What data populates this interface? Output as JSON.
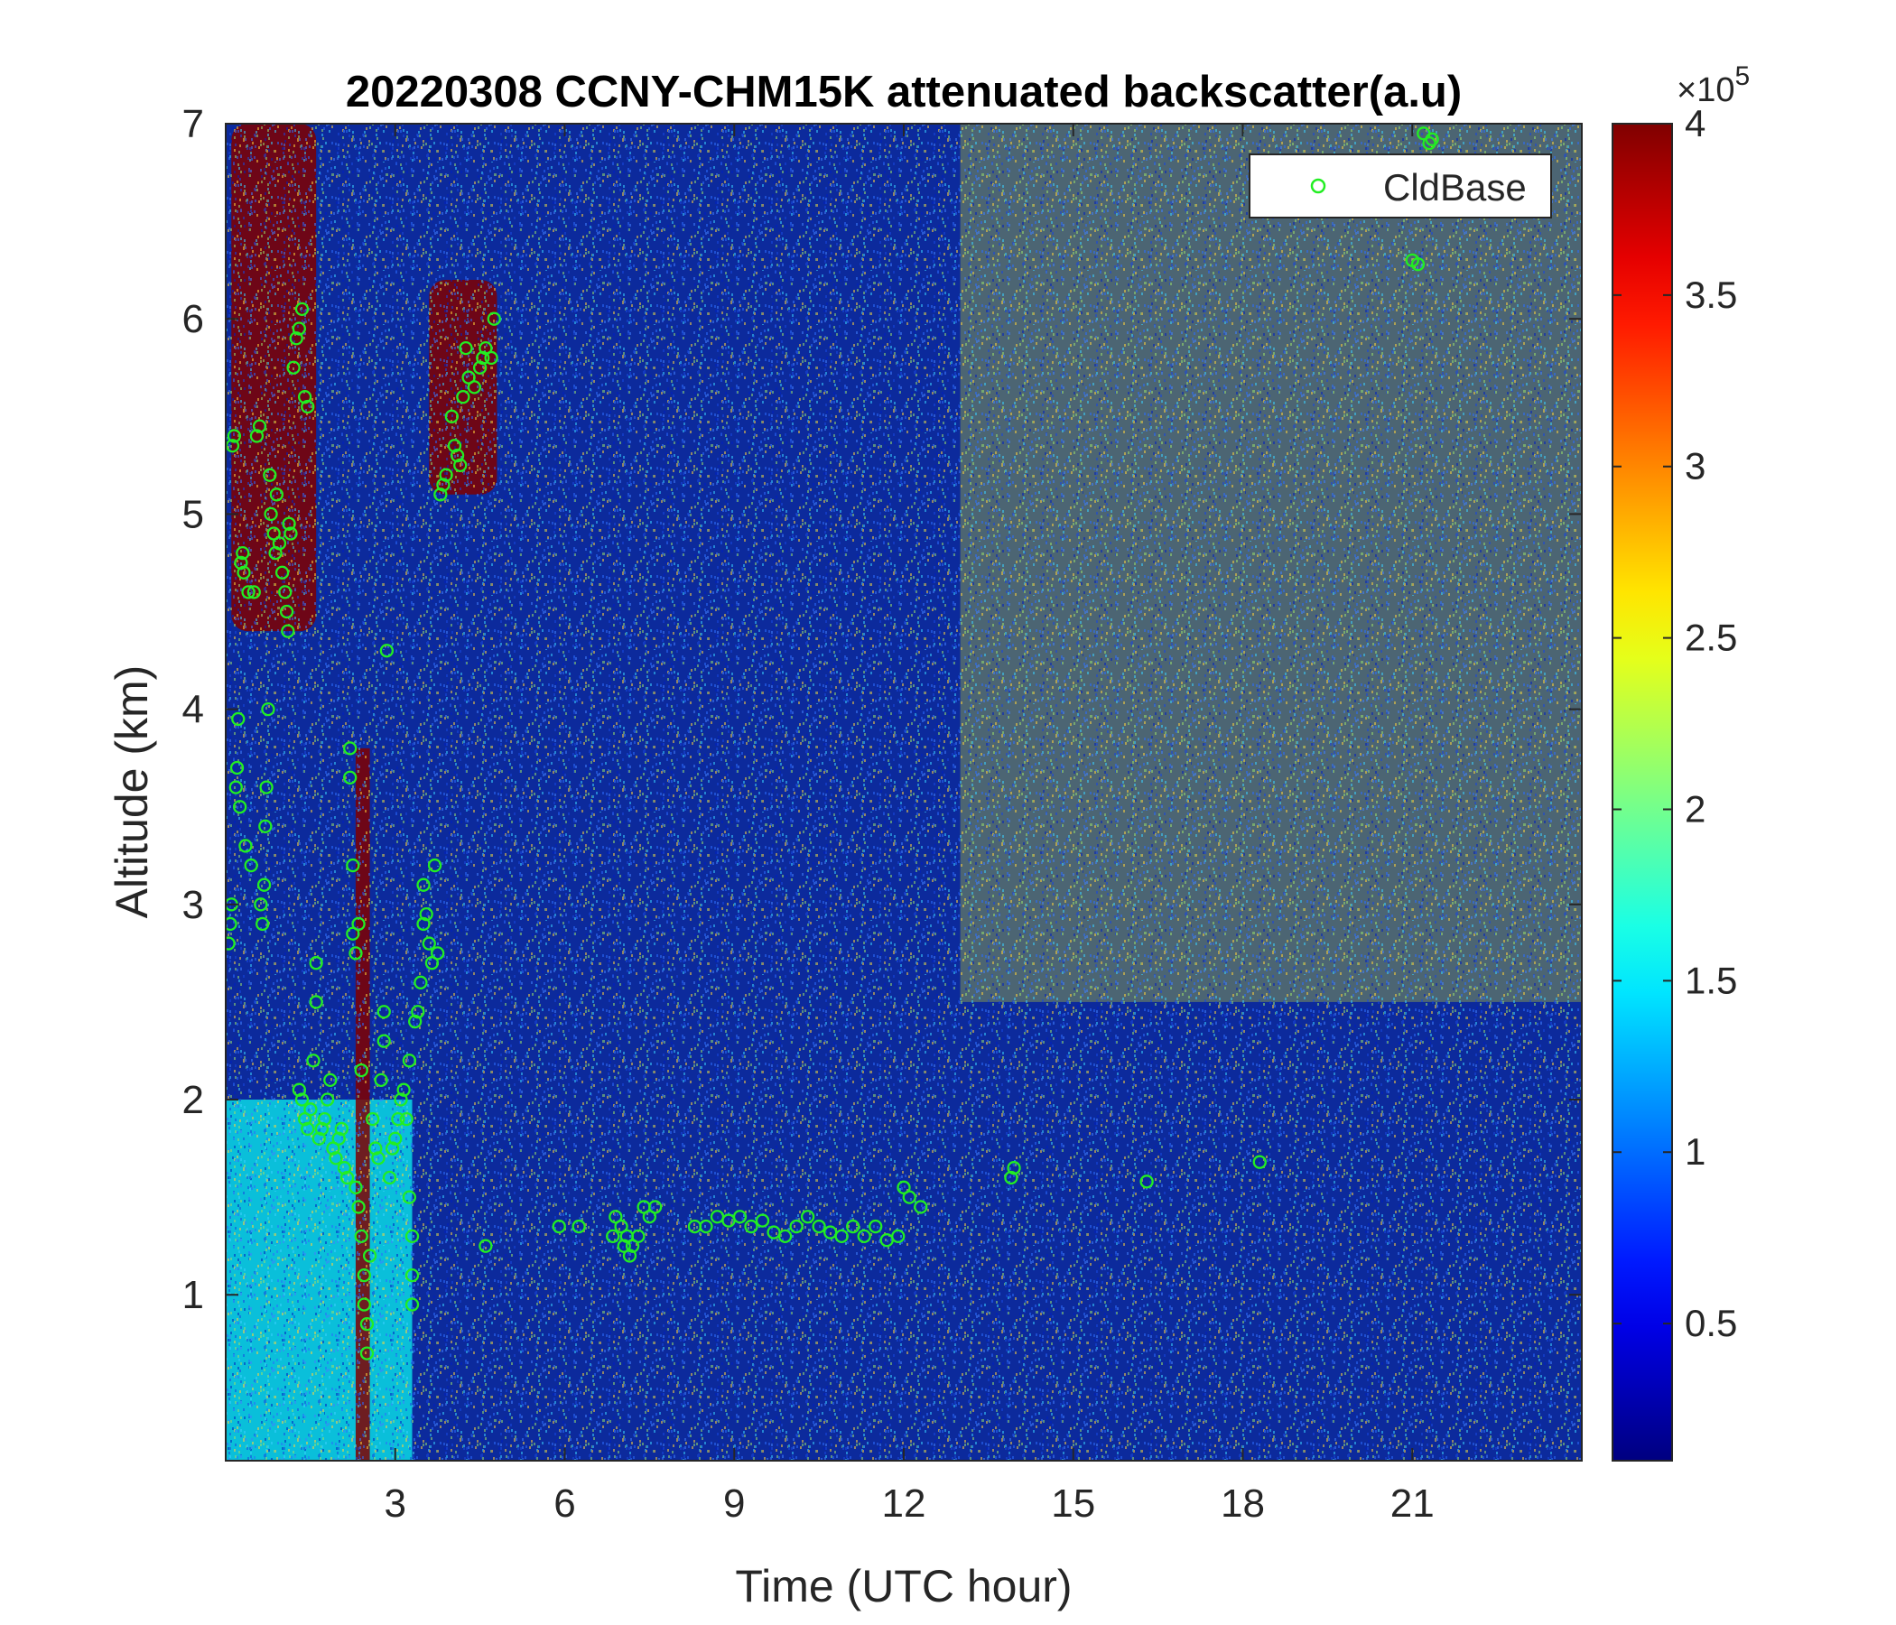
{
  "chart_data": {
    "type": "heatmap",
    "title": "20220308 CCNY-CHM15K attenuated backscatter(a.u)",
    "xlabel": "Time (UTC hour)",
    "ylabel": "Altitude (km)",
    "xlim": [
      0,
      24
    ],
    "ylim": [
      0.15,
      7
    ],
    "xticks": [
      3,
      6,
      9,
      12,
      15,
      18,
      21
    ],
    "yticks": [
      1,
      2,
      3,
      4,
      5,
      6,
      7
    ],
    "colorbar": {
      "colormap": "jet",
      "clim": [
        0.1,
        4
      ],
      "ticks": [
        0.5,
        1,
        1.5,
        2,
        2.5,
        3,
        3.5,
        4
      ],
      "exponent_label": "×10",
      "exponent": "5"
    },
    "legend": {
      "location": "top-right",
      "entries": [
        "CldBase"
      ]
    },
    "colors": {
      "cloud_base_marker": "#22ee22",
      "background_low": "#0a2fb0"
    },
    "regions": [
      {
        "feature": "boundary layer aerosol",
        "x": [
          0,
          3.3
        ],
        "y": [
          0.15,
          2.0
        ],
        "level": 1.6
      },
      {
        "feature": "strong cloud streak",
        "x": [
          2.3,
          2.55
        ],
        "y": [
          0.15,
          3.8
        ],
        "level": 4
      },
      {
        "feature": "high cloud",
        "x": [
          0.1,
          1.6
        ],
        "y": [
          4.4,
          7.0
        ],
        "level": 4
      },
      {
        "feature": "mid cloud",
        "x": [
          3.6,
          4.8
        ],
        "y": [
          5.1,
          6.2
        ],
        "level": 4
      },
      {
        "feature": "noisy high background",
        "x": [
          13,
          24
        ],
        "y": [
          2.5,
          7.0
        ],
        "level": 2.5
      }
    ],
    "series": [
      {
        "name": "CldBase",
        "type": "scatter",
        "points": [
          [
            0.05,
            2.8
          ],
          [
            0.08,
            2.9
          ],
          [
            0.1,
            3.0
          ],
          [
            0.12,
            5.35
          ],
          [
            0.15,
            5.4
          ],
          [
            0.18,
            3.6
          ],
          [
            0.2,
            3.7
          ],
          [
            0.22,
            3.95
          ],
          [
            0.25,
            3.5
          ],
          [
            0.27,
            4.75
          ],
          [
            0.3,
            4.8
          ],
          [
            0.32,
            4.7
          ],
          [
            0.35,
            3.3
          ],
          [
            0.4,
            4.6
          ],
          [
            0.45,
            3.2
          ],
          [
            0.5,
            4.6
          ],
          [
            0.55,
            5.4
          ],
          [
            0.6,
            5.45
          ],
          [
            0.62,
            3.0
          ],
          [
            0.65,
            2.9
          ],
          [
            0.68,
            3.1
          ],
          [
            0.7,
            3.4
          ],
          [
            0.72,
            3.6
          ],
          [
            0.75,
            4.0
          ],
          [
            0.78,
            5.2
          ],
          [
            0.8,
            5.0
          ],
          [
            0.85,
            4.9
          ],
          [
            0.88,
            4.8
          ],
          [
            0.9,
            5.1
          ],
          [
            0.95,
            4.85
          ],
          [
            1.0,
            4.7
          ],
          [
            1.05,
            4.6
          ],
          [
            1.08,
            4.5
          ],
          [
            1.1,
            4.4
          ],
          [
            1.12,
            4.95
          ],
          [
            1.15,
            4.9
          ],
          [
            1.2,
            5.75
          ],
          [
            1.25,
            5.9
          ],
          [
            1.3,
            5.95
          ],
          [
            1.35,
            6.05
          ],
          [
            1.4,
            5.6
          ],
          [
            1.45,
            5.55
          ],
          [
            1.3,
            2.05
          ],
          [
            1.35,
            2.0
          ],
          [
            1.4,
            1.9
          ],
          [
            1.45,
            1.85
          ],
          [
            1.5,
            1.95
          ],
          [
            1.55,
            2.2
          ],
          [
            1.6,
            2.7
          ],
          [
            1.6,
            2.5
          ],
          [
            1.65,
            1.8
          ],
          [
            1.7,
            1.85
          ],
          [
            1.75,
            1.9
          ],
          [
            1.8,
            2.0
          ],
          [
            1.85,
            2.1
          ],
          [
            1.9,
            1.75
          ],
          [
            1.95,
            1.7
          ],
          [
            2.0,
            1.8
          ],
          [
            2.05,
            1.85
          ],
          [
            2.1,
            1.65
          ],
          [
            2.15,
            1.6
          ],
          [
            2.2,
            3.8
          ],
          [
            2.2,
            3.65
          ],
          [
            2.25,
            3.2
          ],
          [
            2.25,
            2.85
          ],
          [
            2.3,
            2.75
          ],
          [
            2.3,
            1.55
          ],
          [
            2.35,
            2.9
          ],
          [
            2.35,
            1.45
          ],
          [
            2.4,
            2.15
          ],
          [
            2.4,
            1.3
          ],
          [
            2.45,
            1.1
          ],
          [
            2.45,
            0.95
          ],
          [
            2.5,
            0.85
          ],
          [
            2.5,
            0.7
          ],
          [
            2.55,
            1.2
          ],
          [
            2.6,
            1.9
          ],
          [
            2.65,
            1.75
          ],
          [
            2.7,
            1.7
          ],
          [
            2.75,
            2.1
          ],
          [
            2.8,
            2.3
          ],
          [
            2.8,
            2.45
          ],
          [
            2.85,
            4.3
          ],
          [
            2.9,
            1.6
          ],
          [
            2.95,
            1.75
          ],
          [
            3.0,
            1.8
          ],
          [
            3.05,
            1.9
          ],
          [
            3.1,
            2.0
          ],
          [
            3.15,
            2.05
          ],
          [
            3.2,
            1.9
          ],
          [
            3.25,
            2.2
          ],
          [
            3.25,
            1.5
          ],
          [
            3.3,
            1.3
          ],
          [
            3.3,
            1.1
          ],
          [
            3.3,
            0.95
          ],
          [
            3.35,
            2.4
          ],
          [
            3.4,
            2.45
          ],
          [
            3.45,
            2.6
          ],
          [
            3.5,
            2.9
          ],
          [
            3.5,
            3.1
          ],
          [
            3.55,
            2.95
          ],
          [
            3.6,
            2.8
          ],
          [
            3.65,
            2.7
          ],
          [
            3.7,
            3.2
          ],
          [
            3.75,
            2.75
          ],
          [
            3.8,
            5.1
          ],
          [
            3.85,
            5.15
          ],
          [
            3.9,
            5.2
          ],
          [
            4.0,
            5.5
          ],
          [
            4.05,
            5.35
          ],
          [
            4.1,
            5.3
          ],
          [
            4.15,
            5.25
          ],
          [
            4.2,
            5.6
          ],
          [
            4.25,
            5.85
          ],
          [
            4.3,
            5.7
          ],
          [
            4.4,
            5.65
          ],
          [
            4.5,
            5.75
          ],
          [
            4.55,
            5.8
          ],
          [
            4.6,
            5.85
          ],
          [
            4.7,
            5.8
          ],
          [
            4.75,
            6.0
          ],
          [
            4.6,
            1.25
          ],
          [
            5.9,
            1.35
          ],
          [
            6.25,
            1.35
          ],
          [
            6.85,
            1.3
          ],
          [
            6.9,
            1.4
          ],
          [
            7.0,
            1.35
          ],
          [
            7.05,
            1.25
          ],
          [
            7.1,
            1.3
          ],
          [
            7.15,
            1.2
          ],
          [
            7.2,
            1.25
          ],
          [
            7.3,
            1.3
          ],
          [
            7.4,
            1.45
          ],
          [
            7.5,
            1.4
          ],
          [
            7.6,
            1.45
          ],
          [
            8.3,
            1.35
          ],
          [
            8.5,
            1.35
          ],
          [
            8.7,
            1.4
          ],
          [
            8.9,
            1.38
          ],
          [
            9.1,
            1.4
          ],
          [
            9.3,
            1.35
          ],
          [
            9.5,
            1.38
          ],
          [
            9.7,
            1.32
          ],
          [
            9.9,
            1.3
          ],
          [
            10.1,
            1.35
          ],
          [
            10.3,
            1.4
          ],
          [
            10.5,
            1.35
          ],
          [
            10.7,
            1.32
          ],
          [
            10.9,
            1.3
          ],
          [
            11.1,
            1.35
          ],
          [
            11.3,
            1.3
          ],
          [
            11.5,
            1.35
          ],
          [
            11.7,
            1.28
          ],
          [
            11.9,
            1.3
          ],
          [
            12.0,
            1.55
          ],
          [
            12.1,
            1.5
          ],
          [
            12.3,
            1.45
          ],
          [
            13.9,
            1.6
          ],
          [
            13.95,
            1.65
          ],
          [
            16.3,
            1.58
          ],
          [
            18.3,
            1.68
          ],
          [
            21.0,
            6.3
          ],
          [
            21.1,
            6.28
          ],
          [
            21.2,
            6.95
          ],
          [
            21.3,
            6.9
          ],
          [
            21.35,
            6.92
          ]
        ]
      }
    ]
  }
}
